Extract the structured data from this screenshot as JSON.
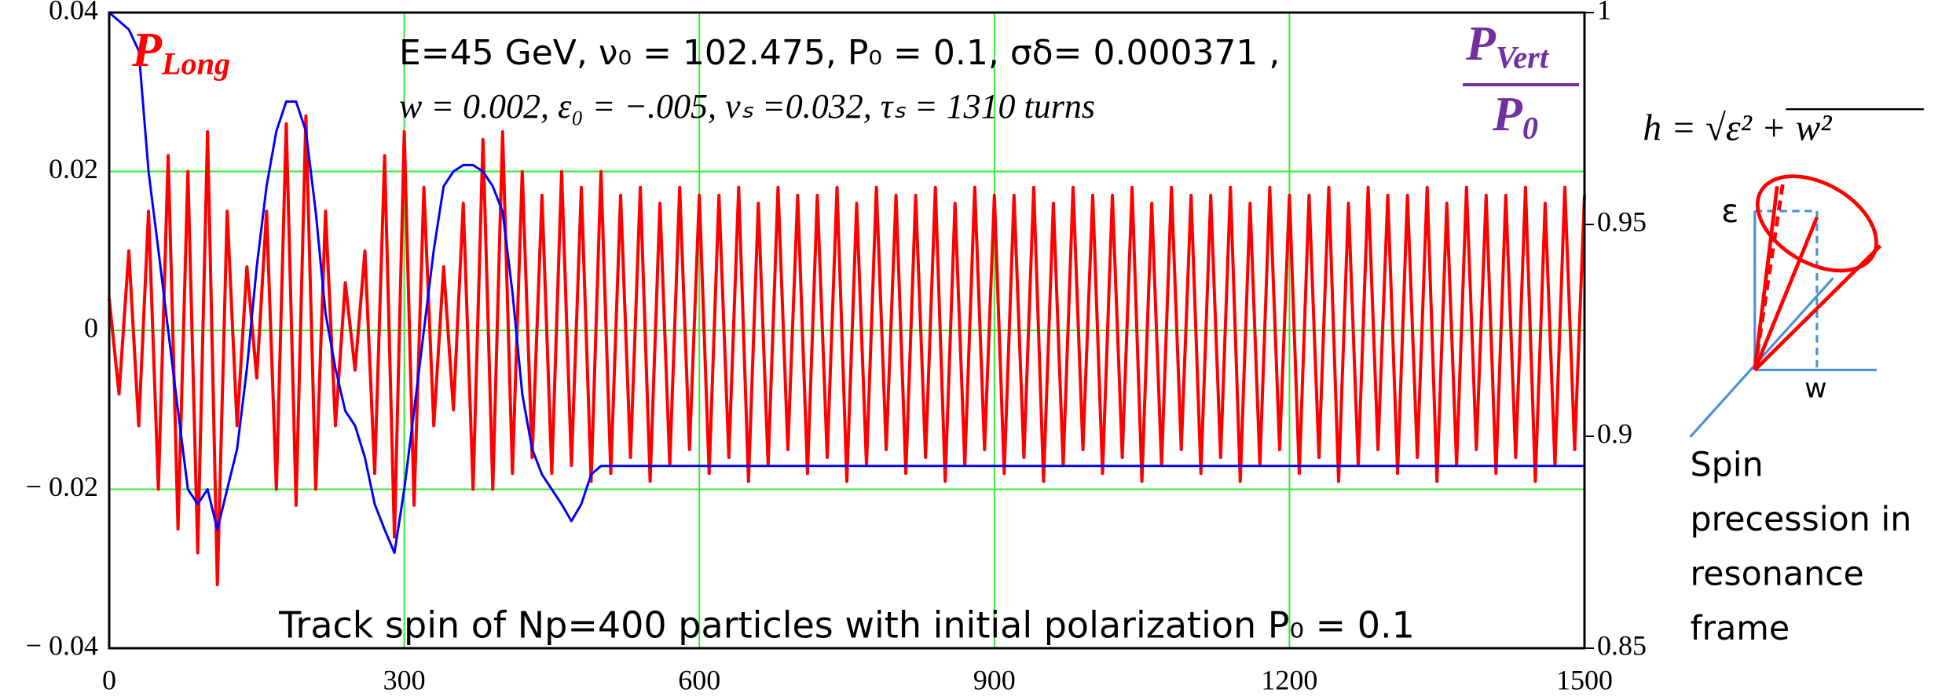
{
  "chart_data": {
    "type": "line",
    "annotations": [
      "E=45 GeV,  ν₀ = 102.475,  P₀ = 0.1,   σδ= 0.000371 ,",
      "w = 0.002,  ε₀ = −.005,  νₛ =0.032, τₛ = 1310 turns",
      "Track spin of Np=400 particles with initial polarization P₀ = 0.1"
    ],
    "series_labels": {
      "long": {
        "main": "P",
        "sub": "Long"
      },
      "vert": {
        "main": "P",
        "sub": "Vert"
      },
      "norm": {
        "main": "P",
        "sub": "0"
      }
    },
    "xlim": [
      0,
      1500
    ],
    "xticks": [
      0,
      300,
      600,
      900,
      1200,
      1500
    ],
    "ylim": [
      -0.04,
      0.04
    ],
    "yticks": [
      {
        "value": -0.04,
        "label": "− 0.04"
      },
      {
        "value": -0.02,
        "label": "− 0.02"
      },
      0,
      0.02,
      0.04
    ],
    "y2lim": [
      0.85,
      1
    ],
    "y2ticks": [
      0.85,
      0.9,
      0.95,
      1
    ],
    "grid": true,
    "grid_color": "#33ee33",
    "series": [
      {
        "color": "#ff0000",
        "x": [
          0,
          10,
          20,
          30,
          40,
          50,
          60,
          70,
          80,
          90,
          100,
          110,
          120,
          130,
          140,
          150,
          160,
          170,
          180,
          190,
          200,
          210,
          220,
          230,
          240,
          250,
          260,
          270,
          280,
          290,
          300,
          310,
          320,
          330,
          340,
          350,
          360,
          370,
          380,
          390,
          400,
          410,
          420,
          430,
          440,
          450,
          460,
          470,
          480,
          490,
          500,
          510,
          520,
          530,
          540,
          550,
          560,
          570,
          580,
          590,
          600,
          610,
          620,
          630,
          640,
          650,
          660,
          670,
          680,
          690,
          700,
          710,
          720,
          730,
          740,
          750,
          760,
          770,
          780,
          790,
          800,
          810,
          820,
          830,
          840,
          850,
          860,
          870,
          880,
          890,
          900,
          910,
          920,
          930,
          940,
          950,
          960,
          970,
          980,
          990,
          1000,
          1010,
          1020,
          1030,
          1040,
          1050,
          1060,
          1070,
          1080,
          1090,
          1100,
          1110,
          1120,
          1130,
          1140,
          1150,
          1160,
          1170,
          1180,
          1190,
          1200,
          1210,
          1220,
          1230,
          1240,
          1250,
          1260,
          1270,
          1280,
          1290,
          1300,
          1310,
          1320,
          1330,
          1340,
          1350,
          1360,
          1370,
          1380,
          1390,
          1400,
          1410,
          1420,
          1430,
          1440,
          1450,
          1460,
          1470,
          1480,
          1490,
          1500
        ],
        "values": [
          0.004,
          -0.008,
          0.01,
          -0.012,
          0.015,
          -0.02,
          0.022,
          -0.025,
          0.02,
          -0.028,
          0.025,
          -0.032,
          0.015,
          -0.012,
          0.008,
          -0.006,
          0.015,
          -0.02,
          0.026,
          -0.022,
          0.027,
          -0.02,
          0.015,
          -0.012,
          0.006,
          -0.005,
          0.01,
          -0.018,
          0.022,
          -0.026,
          0.025,
          -0.022,
          0.018,
          -0.012,
          0.008,
          -0.01,
          0.016,
          -0.02,
          0.024,
          -0.02,
          0.025,
          -0.018,
          0.02,
          -0.016,
          0.017,
          -0.018,
          0.02,
          -0.017,
          0.018,
          -0.019,
          0.02,
          -0.018,
          0.017,
          -0.016,
          0.018,
          -0.019,
          0.016,
          -0.017,
          0.018,
          -0.015,
          0.017,
          -0.018,
          0.017,
          -0.016,
          0.018,
          -0.019,
          0.016,
          -0.017,
          0.018,
          -0.015,
          0.017,
          -0.018,
          0.017,
          -0.016,
          0.018,
          -0.019,
          0.016,
          -0.017,
          0.018,
          -0.015,
          0.017,
          -0.018,
          0.017,
          -0.016,
          0.018,
          -0.019,
          0.016,
          -0.017,
          0.018,
          -0.015,
          0.017,
          -0.018,
          0.017,
          -0.016,
          0.018,
          -0.019,
          0.016,
          -0.017,
          0.018,
          -0.015,
          0.017,
          -0.018,
          0.017,
          -0.016,
          0.018,
          -0.019,
          0.016,
          -0.017,
          0.018,
          -0.015,
          0.017,
          -0.018,
          0.017,
          -0.016,
          0.018,
          -0.019,
          0.016,
          -0.017,
          0.018,
          -0.015,
          0.017,
          -0.018,
          0.017,
          -0.016,
          0.018,
          -0.019,
          0.016,
          -0.017,
          0.018,
          -0.015,
          0.017,
          -0.018,
          0.017,
          -0.016,
          0.018,
          -0.019,
          0.016,
          -0.017,
          0.018,
          -0.015,
          0.017,
          -0.018,
          0.017,
          -0.016,
          0.018,
          -0.019,
          0.016,
          -0.017,
          0.018,
          -0.015,
          0.017
        ]
      },
      {
        "color": "#0000ff",
        "axis": "y2",
        "x": [
          0,
          10,
          20,
          30,
          40,
          50,
          60,
          70,
          80,
          90,
          100,
          110,
          120,
          130,
          140,
          150,
          160,
          170,
          180,
          190,
          200,
          210,
          220,
          230,
          240,
          250,
          260,
          270,
          280,
          290,
          300,
          310,
          320,
          330,
          340,
          350,
          360,
          370,
          380,
          390,
          400,
          410,
          420,
          430,
          440,
          450,
          460,
          470,
          480,
          490,
          500,
          1500
        ],
        "values": [
          1.0,
          0.998,
          0.996,
          0.991,
          0.9625,
          0.944,
          0.925,
          0.906,
          0.8875,
          0.884,
          0.8875,
          0.878,
          0.8875,
          0.897,
          0.916,
          0.94,
          0.959,
          0.972,
          0.979,
          0.979,
          0.972,
          0.953,
          0.929,
          0.916,
          0.906,
          0.9025,
          0.895,
          0.884,
          0.878,
          0.8725,
          0.8875,
          0.906,
          0.925,
          0.944,
          0.959,
          0.9625,
          0.964,
          0.964,
          0.9625,
          0.959,
          0.953,
          0.934,
          0.91,
          0.897,
          0.891,
          0.8875,
          0.884,
          0.88,
          0.884,
          0.891,
          0.893,
          0.893
        ]
      }
    ]
  },
  "diagram": {
    "formula": "h = √ε² + w²",
    "epsilon": "ε",
    "w": "w",
    "caption": [
      "Spin",
      "precession in",
      "resonance",
      "frame"
    ]
  }
}
